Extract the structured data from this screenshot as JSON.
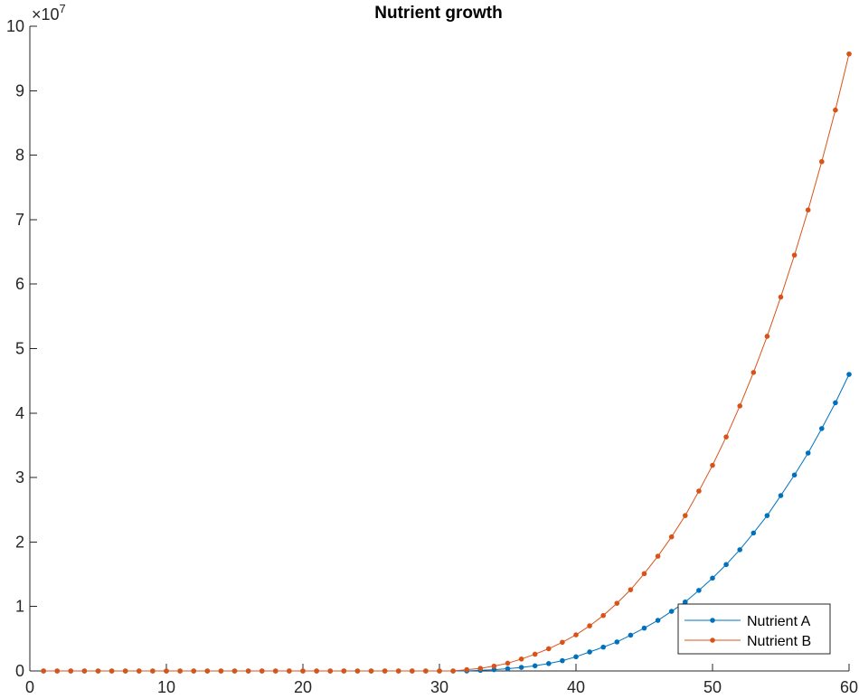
{
  "chart_data": {
    "type": "line",
    "title": "Nutrient growth",
    "xlabel": "",
    "ylabel": "",
    "xlim": [
      0,
      60
    ],
    "ylim": [
      0,
      100000000
    ],
    "x_ticks": [
      "0",
      "10",
      "20",
      "30",
      "40",
      "50",
      "60"
    ],
    "y_ticks": [
      "0",
      "1",
      "2",
      "3",
      "4",
      "5",
      "6",
      "7",
      "8",
      "9",
      "10"
    ],
    "y_exponent_label": {
      "base": "×10",
      "power": "7"
    },
    "legend_position": "bottom-right",
    "grid": false,
    "x": [
      1,
      2,
      3,
      4,
      5,
      6,
      7,
      8,
      9,
      10,
      11,
      12,
      13,
      14,
      15,
      16,
      17,
      18,
      19,
      20,
      21,
      22,
      23,
      24,
      25,
      26,
      27,
      28,
      29,
      30,
      31,
      32,
      33,
      34,
      35,
      36,
      37,
      38,
      39,
      40,
      41,
      42,
      43,
      44,
      45,
      46,
      47,
      48,
      49,
      50,
      51,
      52,
      53,
      54,
      55,
      56,
      57,
      58,
      59,
      60
    ],
    "series": [
      {
        "name": "Nutrient A",
        "color": "#0072BD",
        "values": [
          0,
          0,
          0,
          0,
          0,
          0,
          0,
          0,
          0,
          0,
          0,
          0,
          0,
          0,
          0,
          0,
          0,
          0,
          0,
          0,
          0,
          0,
          0,
          0,
          0,
          0,
          0,
          0,
          0,
          0,
          0,
          0,
          100000,
          200000,
          350000,
          550000,
          800000,
          1150000,
          1600000,
          2200000,
          2950000,
          3700000,
          4500000,
          5550000,
          6650000,
          7850000,
          9250000,
          10700000,
          12500000,
          14400000,
          16500000,
          18800000,
          21400000,
          24100000,
          27200000,
          30400000,
          33800000,
          37600000,
          41600000,
          46000000
        ]
      },
      {
        "name": "Nutrient B",
        "color": "#D95319",
        "values": [
          0,
          0,
          0,
          0,
          0,
          0,
          0,
          0,
          0,
          0,
          0,
          0,
          0,
          0,
          0,
          0,
          0,
          0,
          0,
          0,
          0,
          0,
          0,
          0,
          0,
          0,
          0,
          0,
          0,
          0,
          0,
          200000,
          400000,
          750000,
          1200000,
          1850000,
          2600000,
          3450000,
          4450000,
          5600000,
          7000000,
          8600000,
          10500000,
          12600000,
          15100000,
          17800000,
          20800000,
          24100000,
          27900000,
          31900000,
          36300000,
          41100000,
          46300000,
          51900000,
          58000000,
          64500000,
          71500000,
          79000000,
          87000000,
          95700000
        ]
      }
    ]
  }
}
